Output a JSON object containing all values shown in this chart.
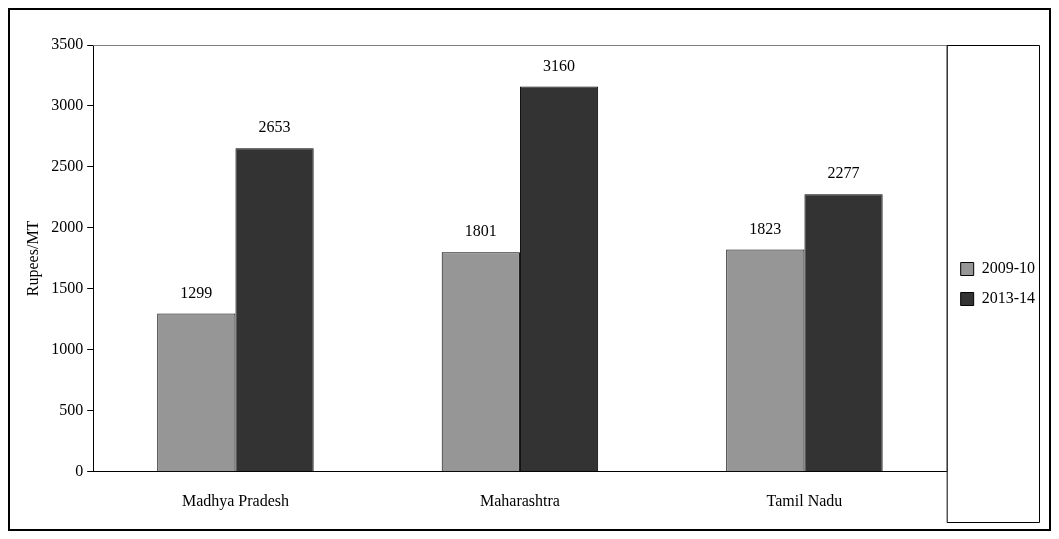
{
  "chart_data": {
    "type": "bar",
    "ylabel": "Rupees/MT",
    "categories": [
      "Madhya Pradesh",
      "Maharashtra",
      "Tamil Nadu"
    ],
    "series": [
      {
        "name": "2009-10",
        "color": "#969696",
        "values": [
          1299,
          1801,
          1823
        ]
      },
      {
        "name": "2013-14",
        "color": "#333333",
        "values": [
          2653,
          3160,
          2277
        ]
      }
    ],
    "ylim": [
      0,
      3500
    ],
    "yticks": [
      0,
      500,
      1000,
      1500,
      2000,
      2500,
      3000,
      3500
    ],
    "grid": false,
    "legend": "right",
    "data_labels": true
  }
}
